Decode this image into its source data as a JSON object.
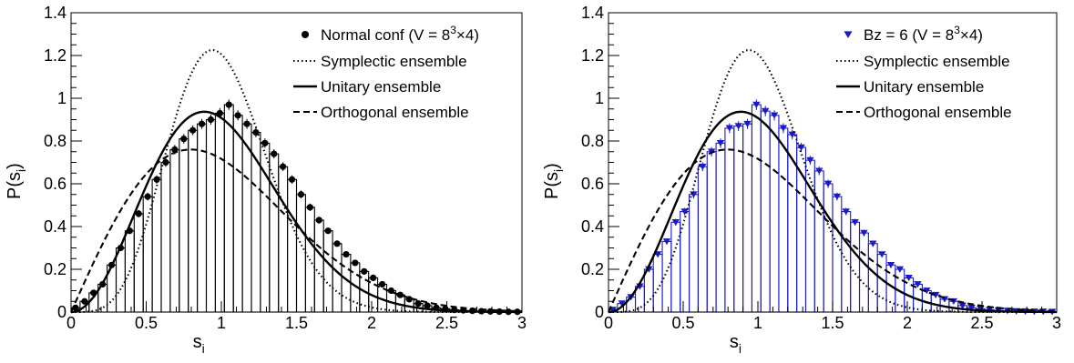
{
  "chart_data": [
    {
      "type": "bar",
      "title": "",
      "xlabel": "s",
      "xlabel_sub": "i",
      "ylabel": "P(s",
      "ylabel_sub": "i",
      "ylabel_close": ")",
      "xlim": [
        0,
        3
      ],
      "ylim": [
        0,
        1.4
      ],
      "xticks": [
        0,
        0.5,
        1,
        1.5,
        2,
        2.5,
        3
      ],
      "yticks": [
        0,
        0.2,
        0.4,
        0.6,
        0.8,
        1,
        1.2,
        1.4
      ],
      "xtick_labels": [
        "0",
        "0.5",
        "1",
        "1.5",
        "2",
        "2.5",
        "3"
      ],
      "ytick_labels": [
        "0",
        "0.2",
        "0.4",
        "0.6",
        "0.8",
        "1",
        "1.2",
        "1.4"
      ],
      "grid": false,
      "legend_position": "top-right",
      "bin_width": 0.06,
      "histogram": {
        "color": "#000000",
        "marker": "circle",
        "legend": {
          "prefix": "Normal conf (V = 8",
          "sup": "3",
          "suffix": "×4)"
        },
        "values": [
          0.02,
          0.05,
          0.09,
          0.13,
          0.22,
          0.3,
          0.38,
          0.46,
          0.54,
          0.62,
          0.7,
          0.76,
          0.81,
          0.85,
          0.88,
          0.9,
          0.93,
          0.97,
          0.92,
          0.88,
          0.84,
          0.79,
          0.74,
          0.68,
          0.62,
          0.55,
          0.49,
          0.43,
          0.38,
          0.32,
          0.27,
          0.23,
          0.19,
          0.16,
          0.13,
          0.1,
          0.08,
          0.06,
          0.04,
          0.03,
          0.02,
          0.015,
          0.01,
          0.008,
          0.006,
          0.004,
          0.003,
          0.002,
          0.001,
          0.001
        ]
      },
      "curves": [
        {
          "name": "Symplectic ensemble",
          "style": "dotted"
        },
        {
          "name": "Unitary ensemble",
          "style": "solid"
        },
        {
          "name": "Orthogonal ensemble",
          "style": "dashed"
        }
      ]
    },
    {
      "type": "bar",
      "title": "",
      "xlabel": "s",
      "xlabel_sub": "i",
      "ylabel": "P(s",
      "ylabel_sub": "i",
      "ylabel_close": ")",
      "xlim": [
        0,
        3
      ],
      "ylim": [
        0,
        1.4
      ],
      "xticks": [
        0,
        0.5,
        1,
        1.5,
        2,
        2.5,
        3
      ],
      "yticks": [
        0,
        0.2,
        0.4,
        0.6,
        0.8,
        1,
        1.2,
        1.4
      ],
      "xtick_labels": [
        "0",
        "0.5",
        "1",
        "1.5",
        "2",
        "2.5",
        "3"
      ],
      "ytick_labels": [
        "0",
        "0.2",
        "0.4",
        "0.6",
        "0.8",
        "1",
        "1.2",
        "1.4"
      ],
      "grid": false,
      "legend_position": "top-right",
      "bin_width": 0.06,
      "histogram": {
        "color": "#1a1acc",
        "marker": "triangle-down",
        "legend": {
          "prefix": "Bz = 6 (V = 8",
          "sup": "3",
          "suffix": "×4)"
        },
        "values": [
          0.01,
          0.04,
          0.07,
          0.12,
          0.2,
          0.27,
          0.33,
          0.42,
          0.47,
          0.55,
          0.68,
          0.75,
          0.79,
          0.86,
          0.87,
          0.88,
          0.97,
          0.94,
          0.92,
          0.86,
          0.83,
          0.77,
          0.71,
          0.66,
          0.6,
          0.54,
          0.47,
          0.42,
          0.37,
          0.32,
          0.27,
          0.22,
          0.2,
          0.16,
          0.13,
          0.1,
          0.08,
          0.06,
          0.05,
          0.03,
          0.02,
          0.015,
          0.01,
          0.008,
          0.006,
          0.004,
          0.003,
          0.002,
          0.002,
          0.001
        ]
      },
      "curves": [
        {
          "name": "Symplectic ensemble",
          "style": "dotted"
        },
        {
          "name": "Unitary ensemble",
          "style": "solid"
        },
        {
          "name": "Orthogonal ensemble",
          "style": "dashed"
        }
      ]
    }
  ]
}
